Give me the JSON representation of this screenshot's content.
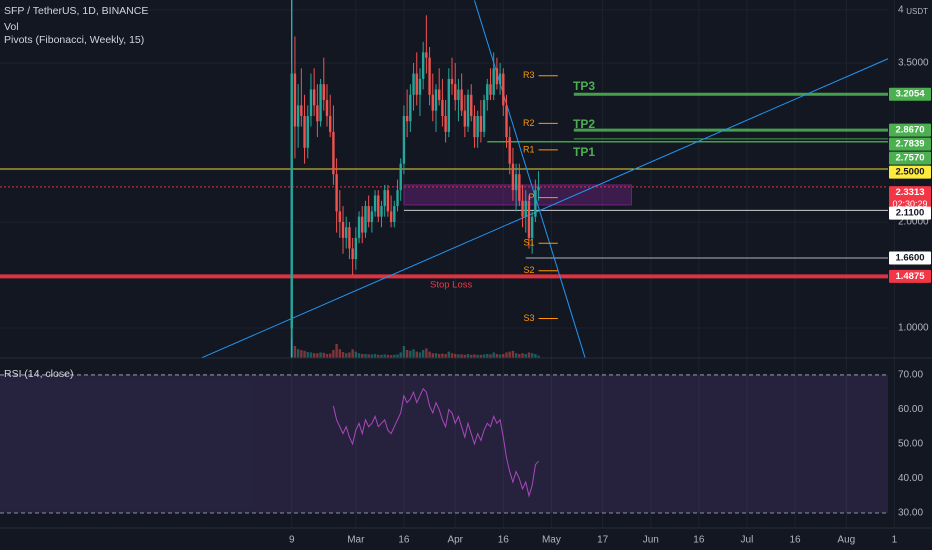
{
  "chart_data": {
    "type": "candlestick",
    "title": "SFP / TetherUS, 1D, BINANCE",
    "legend_lines": [
      "Vol",
      "Pivots (Fibonacci, Weekly, 15)"
    ],
    "currency": "USDT",
    "up_color": "#26a69a",
    "down_color": "#ef5350",
    "open": [
      1.0,
      3.4,
      2.9,
      3.1,
      3.0,
      2.7,
      3.0,
      3.25,
      3.1,
      2.95,
      3.3,
      3.15,
      3.0,
      2.85,
      2.45,
      2.1,
      2.0,
      1.85,
      1.95,
      1.75,
      1.65,
      1.85,
      2.05,
      1.9,
      2.15,
      2.0,
      2.1,
      2.25,
      2.05,
      2.15,
      2.3,
      2.1,
      2.0,
      2.15,
      2.3,
      2.55,
      3.0,
      2.95,
      3.2,
      3.4,
      3.2,
      3.35,
      3.6,
      3.55,
      3.2,
      3.05,
      3.25,
      3.15,
      3.0,
      2.85,
      3.35,
      3.3,
      3.15,
      3.25,
      3.05,
      2.9,
      3.2,
      3.0,
      2.8,
      3.0,
      2.85,
      3.15,
      3.3,
      3.2,
      3.45,
      3.3,
      3.4,
      3.1,
      2.8,
      2.55,
      2.3,
      2.45,
      2.2,
      2.05,
      2.2,
      1.85,
      2.05,
      2.3
    ],
    "high": [
      3.5,
      3.75,
      3.3,
      3.45,
      3.2,
      3.1,
      3.4,
      3.45,
      3.3,
      3.35,
      3.55,
      3.3,
      3.2,
      3.1,
      2.6,
      2.3,
      2.15,
      2.05,
      2.0,
      1.85,
      1.95,
      2.1,
      2.15,
      2.2,
      2.25,
      2.15,
      2.3,
      2.3,
      2.2,
      2.35,
      2.35,
      2.25,
      2.2,
      2.4,
      2.6,
      3.1,
      3.25,
      3.3,
      3.5,
      3.6,
      3.45,
      3.7,
      3.95,
      3.65,
      3.4,
      3.3,
      3.45,
      3.35,
      3.15,
      3.45,
      3.55,
      3.5,
      3.35,
      3.4,
      3.2,
      3.25,
      3.3,
      3.1,
      3.05,
      3.15,
      3.2,
      3.35,
      3.45,
      3.6,
      3.55,
      3.5,
      3.45,
      3.2,
      2.9,
      2.7,
      2.55,
      2.55,
      2.35,
      2.3,
      2.25,
      2.1,
      2.4,
      2.48
    ],
    "low": [
      0.9,
      2.6,
      2.7,
      2.9,
      2.55,
      2.6,
      2.9,
      3.0,
      2.8,
      2.9,
      3.05,
      2.9,
      2.8,
      2.35,
      1.9,
      1.85,
      1.7,
      1.75,
      1.65,
      1.5,
      1.55,
      1.8,
      1.8,
      1.85,
      1.95,
      1.9,
      2.05,
      2.0,
      1.95,
      2.05,
      2.05,
      1.95,
      1.95,
      2.1,
      2.2,
      2.45,
      2.8,
      2.85,
      3.05,
      3.1,
      3.0,
      3.25,
      3.4,
      3.1,
      2.95,
      2.85,
      3.1,
      2.9,
      2.75,
      2.8,
      3.2,
      3.05,
      2.95,
      3.0,
      2.8,
      2.85,
      2.95,
      2.7,
      2.7,
      2.75,
      2.8,
      3.05,
      3.15,
      3.15,
      3.25,
      3.2,
      3.0,
      2.7,
      2.45,
      2.2,
      2.1,
      2.15,
      1.95,
      1.9,
      1.75,
      1.7,
      2.0,
      2.2
    ],
    "close": [
      3.4,
      2.9,
      3.1,
      3.0,
      2.7,
      3.0,
      3.25,
      3.1,
      2.95,
      3.3,
      3.15,
      3.0,
      2.85,
      2.45,
      2.1,
      2.0,
      1.85,
      1.95,
      1.75,
      1.65,
      1.85,
      2.05,
      1.9,
      2.15,
      2.0,
      2.1,
      2.25,
      2.05,
      2.15,
      2.3,
      2.1,
      2.0,
      2.15,
      2.3,
      2.55,
      3.0,
      2.95,
      3.2,
      3.4,
      3.2,
      3.35,
      3.6,
      3.55,
      3.2,
      3.05,
      3.25,
      3.15,
      3.0,
      2.85,
      3.35,
      3.3,
      3.15,
      3.25,
      3.05,
      2.9,
      3.2,
      3.0,
      2.8,
      3.0,
      2.85,
      3.15,
      3.3,
      3.2,
      3.45,
      3.3,
      3.4,
      3.1,
      2.8,
      2.55,
      2.3,
      2.45,
      2.2,
      2.05,
      2.2,
      1.85,
      2.05,
      2.3,
      2.3313
    ],
    "volume": [
      108,
      30,
      22,
      20,
      18,
      15,
      14,
      12,
      12,
      14,
      13,
      10,
      11,
      20,
      35,
      22,
      15,
      12,
      14,
      22,
      16,
      12,
      10,
      10,
      9,
      9,
      10,
      8,
      8,
      9,
      8,
      7,
      8,
      9,
      14,
      30,
      20,
      18,
      22,
      16,
      14,
      20,
      24,
      16,
      12,
      12,
      10,
      11,
      10,
      16,
      12,
      10,
      9,
      9,
      8,
      10,
      8,
      9,
      8,
      8,
      9,
      10,
      9,
      14,
      10,
      9,
      10,
      14,
      16,
      18,
      12,
      10,
      12,
      10,
      14,
      12,
      10,
      6
    ],
    "volume_lim": [
      0,
      250
    ],
    "xlim": [
      -91,
      186
    ],
    "xticks": [
      {
        "value": 0,
        "label": "9"
      },
      {
        "value": 20,
        "label": "Mar"
      },
      {
        "value": 35,
        "label": "16"
      },
      {
        "value": 51,
        "label": "Apr"
      },
      {
        "value": 66,
        "label": "16"
      },
      {
        "value": 81,
        "label": "May"
      },
      {
        "value": 97,
        "label": "17"
      },
      {
        "value": 112,
        "label": "Jun"
      },
      {
        "value": 127,
        "label": "16"
      },
      {
        "value": 142,
        "label": "Jul"
      },
      {
        "value": 157,
        "label": "16"
      },
      {
        "value": 173,
        "label": "Aug"
      },
      {
        "value": 188,
        "label": "1"
      }
    ],
    "ylim": [
      0.717,
      4.094
    ],
    "yticks": [
      4,
      {
        "value": 3.5,
        "label": "3.5000"
      },
      {
        "value": 2,
        "label": "2.0000"
      },
      {
        "value": 1,
        "label": "1.0000"
      }
    ],
    "grid": true,
    "levels": [
      {
        "price": 3.2054,
        "color": "#4caf50",
        "text_color": "#ffffff",
        "from": 88,
        "width": 3
      },
      {
        "price": {
          "value": 2.867,
          "label": "2.8670"
        },
        "color": "#4caf50",
        "text_color": "#ffffff",
        "from": 88,
        "width": 3
      },
      {
        "price": 2.7839,
        "color": "#4caf50",
        "text_color": "#ffffff",
        "from": 88,
        "width": 1
      },
      {
        "price": {
          "value": 2.757,
          "label": "2.7570"
        },
        "color": "#4caf50",
        "text_color": "#ffffff",
        "from": 61,
        "width": 1.5
      },
      {
        "price": {
          "value": 2.5,
          "label": "2.5000"
        },
        "color": "#ffeb3b",
        "text_color": "#131722",
        "from": -91,
        "width": 1
      },
      {
        "price": 2.3313,
        "color": "#f23645",
        "text_color": "#ffffff",
        "from": -91,
        "width": 1,
        "dashed": true,
        "countdown": "02:30:29"
      },
      {
        "price": {
          "value": 2.11,
          "label": "2.1100"
        },
        "color": "#ffffff",
        "text_color": "#131722",
        "from": 35,
        "width": 0.8
      },
      {
        "price": {
          "value": 1.66,
          "label": "1.6600"
        },
        "color": "#ffffff",
        "text_color": "#131722",
        "from": 73,
        "width": 0.8
      },
      {
        "price": 1.4875,
        "color": "#f23645",
        "text_color": "#ffffff",
        "from": -91,
        "width": 4
      }
    ],
    "annotations": [
      {
        "text": "TP3",
        "color": "#4caf50"
      },
      {
        "text": "TP2",
        "color": "#4caf50"
      },
      {
        "text": "TP1",
        "color": "#4caf50"
      },
      {
        "text": "Stop Loss",
        "color": "#f23645"
      }
    ],
    "pivots": {
      "period": [
        77,
        83
      ],
      "color": "#ff9800",
      "levels": [
        {
          "label": "R3",
          "value": 3.38
        },
        {
          "label": "R2",
          "value": 2.93
        },
        {
          "label": "R1",
          "value": 2.68
        },
        {
          "label": "P",
          "value": 2.23
        },
        {
          "label": "S1",
          "value": 1.8
        },
        {
          "label": "S2",
          "value": 1.54
        },
        {
          "label": "S3",
          "value": 1.09
        }
      ]
    },
    "zone": {
      "x": [
        35,
        106
      ],
      "price": [
        2.16,
        2.35
      ],
      "color": "#9c27b0"
    },
    "trendlines": [
      {
        "points": [
          [
            -28,
            0.72
          ],
          [
            186,
            3.54
          ]
        ],
        "color": "#2196f3"
      },
      {
        "points": [
          [
            57,
            4.09
          ],
          [
            91.5,
            0.72
          ]
        ],
        "color": "#2196f3"
      }
    ],
    "vline": {
      "x": 0,
      "color": "#26c6da"
    },
    "rsi": {
      "title": "RSI (14, close)",
      "color": "#ab47bc",
      "values": [
        null,
        null,
        null,
        null,
        null,
        null,
        null,
        null,
        null,
        null,
        null,
        null,
        null,
        61,
        57,
        55,
        53,
        55,
        52,
        50,
        54,
        56,
        53,
        57,
        55,
        56,
        58,
        55,
        56,
        57,
        54,
        53,
        55,
        57,
        59,
        64,
        62,
        63,
        65,
        62,
        64,
        66,
        65,
        61,
        59,
        62,
        60,
        57,
        55,
        60,
        59,
        56,
        58,
        55,
        52,
        56,
        53,
        50,
        53,
        51,
        54,
        56,
        55,
        58,
        56,
        57,
        52,
        46,
        42,
        39,
        42,
        40,
        37,
        39,
        35,
        38,
        44,
        45
      ],
      "ylim": [
        27.4,
        75.2
      ],
      "band": [
        30,
        70
      ],
      "yticks": [
        {
          "value": 70,
          "label": "70.00"
        },
        {
          "value": 60,
          "label": "60.00"
        },
        {
          "value": 50,
          "label": "50.00"
        },
        {
          "value": 40,
          "label": "40.00"
        },
        {
          "value": 30,
          "label": "30.00"
        }
      ]
    }
  }
}
